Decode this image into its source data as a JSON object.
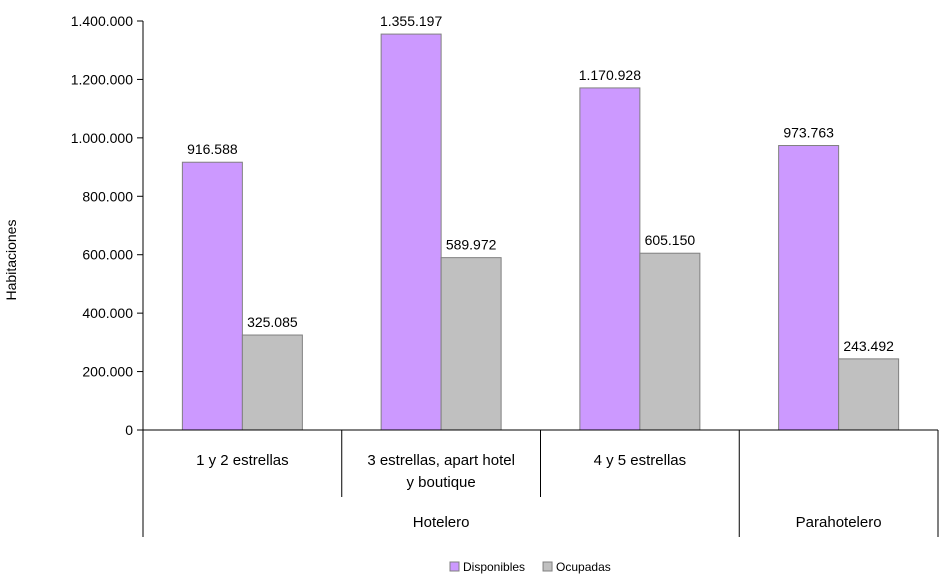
{
  "chart_data": {
    "type": "bar",
    "ylabel": "Habitaciones",
    "ylim": [
      0,
      1400000
    ],
    "yticks": [
      0,
      200000,
      400000,
      600000,
      800000,
      1000000,
      1200000,
      1400000
    ],
    "ytick_labels": [
      "0",
      "200.000",
      "400.000",
      "600.000",
      "800.000",
      "1.000.000",
      "1.200.000",
      "1.400.000"
    ],
    "categories": [
      "1 y 2 estrellas",
      "3 estrellas, apart hotel y boutique",
      "4 y 5 estrellas",
      ""
    ],
    "category_label_lines": [
      [
        "1 y 2 estrellas"
      ],
      [
        "3 estrellas, apart hotel",
        "y boutique"
      ],
      [
        "4 y 5 estrellas"
      ],
      []
    ],
    "groups": [
      {
        "label": "Hotelero",
        "categories": [
          0,
          1,
          2
        ]
      },
      {
        "label": "Parahotelero",
        "categories": [
          3
        ]
      }
    ],
    "series": [
      {
        "name": "Disponibles",
        "color": "#cc99ff",
        "values": [
          916588,
          1355197,
          1170928,
          973763
        ],
        "labels": [
          "916.588",
          "1.355.197",
          "1.170.928",
          "973.763"
        ]
      },
      {
        "name": "Ocupadas",
        "color": "#c0c0c0",
        "values": [
          325085,
          589972,
          605150,
          243492
        ],
        "labels": [
          "325.085",
          "589.972",
          "605.150",
          "243.492"
        ]
      }
    ],
    "grid": false,
    "legend_position": "bottom"
  }
}
